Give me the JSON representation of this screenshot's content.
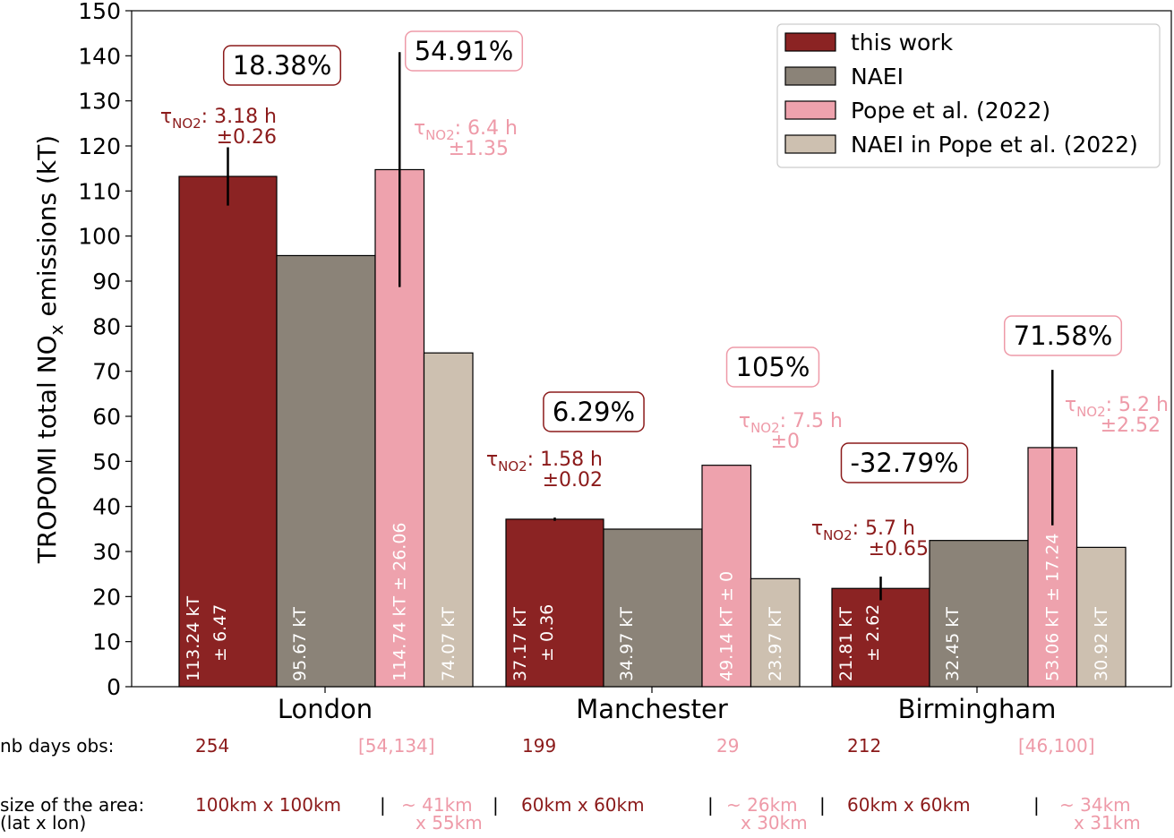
{
  "chart_data": {
    "type": "bar",
    "ylabel": {
      "main": "TROPOMI total NO",
      "sub": "x",
      "rest": " emissions (kT)"
    },
    "categories": [
      "London",
      "Manchester",
      "Birmingham"
    ],
    "ylim": [
      0,
      150
    ],
    "yticks": [
      0,
      10,
      20,
      30,
      40,
      50,
      60,
      70,
      80,
      90,
      100,
      110,
      120,
      130,
      140,
      150
    ],
    "legend": "upper right",
    "series": [
      {
        "name": "this work",
        "color": "#8b2323",
        "values": [
          113.24,
          37.17,
          21.81
        ],
        "value_labels": [
          "113.24 kT",
          "37.17 kT",
          "21.81 kT"
        ],
        "errors": [
          6.47,
          0.36,
          2.62
        ],
        "error_labels": [
          "± 6.47",
          "± 0.36",
          "± 2.62"
        ]
      },
      {
        "name": "NAEI",
        "color": "#8b8378",
        "values": [
          95.67,
          34.97,
          32.45
        ],
        "value_labels": [
          "95.67 kT",
          "34.97 kT",
          "32.45 kT"
        ]
      },
      {
        "name": "Pope et al. (2022)",
        "color": "#eea2ad",
        "values": [
          114.74,
          49.14,
          53.06
        ],
        "value_labels": [
          "114.74 kT ± 26.06",
          "49.14 kT ± 0",
          "53.06 kT ± 17.24"
        ],
        "errors": [
          26.06,
          0,
          17.24
        ]
      },
      {
        "name": "NAEI in Pope et al. (2022)",
        "color": "#cdc0b0",
        "values": [
          74.07,
          23.97,
          30.92
        ],
        "value_labels": [
          "74.07 kT",
          "23.97 kT",
          "30.92 kT"
        ]
      }
    ],
    "percent_labels": [
      {
        "text": "18.38%",
        "color": "#8b1a1a"
      },
      {
        "text": "54.91%",
        "color": "#ee9aa8"
      },
      {
        "text": "6.29%",
        "color": "#8b1a1a"
      },
      {
        "text": "105%",
        "color": "#ee9aa8"
      },
      {
        "text": "-32.79%",
        "color": "#8b1a1a"
      },
      {
        "text": "71.58%",
        "color": "#ee9aa8"
      }
    ],
    "tau_labels": [
      {
        "symbol": "τ",
        "sub": "NO2",
        "text": ": 3.18 h",
        "err": "±0.26",
        "color": "#8b1a1a"
      },
      {
        "symbol": "τ",
        "sub": "NO2",
        "text": ": 6.4 h",
        "err": "±1.35",
        "color": "#ee9aa8"
      },
      {
        "symbol": "τ",
        "sub": "NO2",
        "text": ": 1.58 h",
        "err": "±0.02",
        "color": "#8b1a1a"
      },
      {
        "symbol": "τ",
        "sub": "NO2",
        "text": ": 7.5 h",
        "err": "±0",
        "color": "#ee9aa8"
      },
      {
        "symbol": "τ",
        "sub": "NO2",
        "text": ": 5.7 h",
        "err": "±0.65",
        "color": "#8b1a1a"
      },
      {
        "symbol": "τ",
        "sub": "NO2",
        "text": ": 5.2 h",
        "err": "±2.52",
        "color": "#ee9aa8"
      }
    ]
  },
  "table": {
    "rows": [
      [
        [
          "nb days obs:"
        ],
        [
          "254"
        ],
        [
          "[54,134]"
        ],
        [
          "199"
        ],
        [
          "29"
        ],
        [
          "212"
        ],
        [
          "[46,100]"
        ]
      ],
      [
        [
          "size of the area:",
          "(lat x lon)"
        ],
        [
          "100km x 100km"
        ],
        [
          "|"
        ],
        [
          "~ 41km",
          "x 55km"
        ],
        [
          "|"
        ],
        [
          "60km x 60km"
        ],
        [
          "|"
        ],
        [
          "~ 26km",
          "x 30km"
        ],
        [
          "|"
        ],
        [
          "60km x 60km"
        ],
        [
          "|"
        ],
        [
          "~ 34km",
          "x 31km"
        ]
      ]
    ]
  }
}
